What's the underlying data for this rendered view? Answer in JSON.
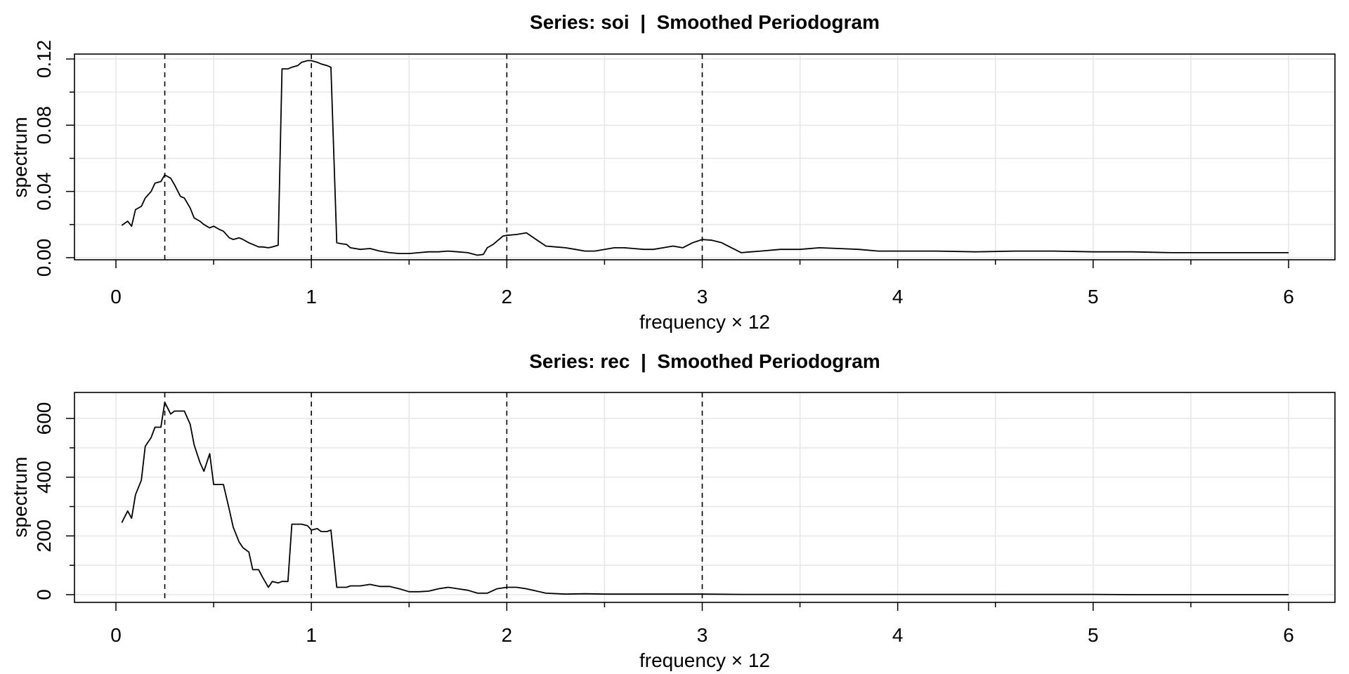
{
  "chart_data": [
    {
      "type": "line",
      "title": "Series: soi  |  Smoothed Periodogram",
      "xlabel": "frequency × 12",
      "ylabel": "spectrum",
      "xlim": [
        0,
        6
      ],
      "ylim": [
        0,
        0.12
      ],
      "xticks": [
        0,
        1,
        2,
        3,
        4,
        5,
        6
      ],
      "xtick_labels": [
        "0",
        "1",
        "2",
        "3",
        "4",
        "5",
        "6"
      ],
      "yticks": [
        0,
        0.04,
        0.08,
        0.12
      ],
      "ytick_labels": [
        "0.00",
        "0.04",
        "0.08",
        "0.12"
      ],
      "grid": true,
      "vlines": [
        0.25,
        1,
        2,
        3
      ],
      "series": [
        {
          "x": [
            0.03,
            0.06,
            0.08,
            0.1,
            0.13,
            0.15,
            0.18,
            0.2,
            0.23,
            0.25,
            0.28,
            0.3,
            0.33,
            0.35,
            0.38,
            0.4,
            0.43,
            0.45,
            0.48,
            0.5,
            0.53,
            0.55,
            0.58,
            0.6,
            0.63,
            0.65,
            0.68,
            0.7,
            0.73,
            0.75,
            0.78,
            0.8,
            0.83,
            0.85,
            0.88,
            0.9,
            0.93,
            0.95,
            0.98,
            1.0,
            1.03,
            1.05,
            1.08,
            1.1,
            1.13,
            1.15,
            1.18,
            1.2,
            1.25,
            1.3,
            1.35,
            1.4,
            1.45,
            1.5,
            1.55,
            1.6,
            1.65,
            1.7,
            1.75,
            1.8,
            1.85,
            1.88,
            1.9,
            1.93,
            1.95,
            1.98,
            2.0,
            2.05,
            2.1,
            2.15,
            2.2,
            2.25,
            2.3,
            2.35,
            2.4,
            2.45,
            2.5,
            2.55,
            2.6,
            2.65,
            2.7,
            2.75,
            2.8,
            2.85,
            2.9,
            2.95,
            3.0,
            3.05,
            3.1,
            3.15,
            3.2,
            3.25,
            3.3,
            3.4,
            3.5,
            3.6,
            3.7,
            3.8,
            3.9,
            4.0,
            4.2,
            4.4,
            4.6,
            4.8,
            5.0,
            5.2,
            5.4,
            5.6,
            5.8,
            6.0
          ],
          "y": [
            0.0195,
            0.022,
            0.019,
            0.029,
            0.031,
            0.036,
            0.04,
            0.045,
            0.046,
            0.05,
            0.048,
            0.044,
            0.037,
            0.036,
            0.03,
            0.024,
            0.022,
            0.02,
            0.018,
            0.019,
            0.017,
            0.016,
            0.012,
            0.011,
            0.012,
            0.011,
            0.009,
            0.008,
            0.0065,
            0.0065,
            0.006,
            0.0065,
            0.0075,
            0.114,
            0.114,
            0.115,
            0.116,
            0.118,
            0.119,
            0.119,
            0.118,
            0.117,
            0.116,
            0.115,
            0.009,
            0.0085,
            0.008,
            0.006,
            0.005,
            0.0055,
            0.004,
            0.003,
            0.0025,
            0.0025,
            0.003,
            0.0035,
            0.0035,
            0.004,
            0.0035,
            0.003,
            0.0015,
            0.002,
            0.006,
            0.008,
            0.01,
            0.013,
            0.0135,
            0.014,
            0.015,
            0.011,
            0.007,
            0.0065,
            0.006,
            0.005,
            0.004,
            0.004,
            0.005,
            0.006,
            0.006,
            0.0055,
            0.005,
            0.005,
            0.006,
            0.007,
            0.006,
            0.009,
            0.011,
            0.0105,
            0.009,
            0.006,
            0.003,
            0.0035,
            0.004,
            0.005,
            0.005,
            0.006,
            0.0055,
            0.005,
            0.004,
            0.004,
            0.004,
            0.0035,
            0.004,
            0.004,
            0.0035,
            0.0035,
            0.003,
            0.003,
            0.003,
            0.003
          ]
        }
      ]
    },
    {
      "type": "line",
      "title": "Series: rec  |  Smoothed Periodogram",
      "xlabel": "frequency × 12",
      "ylabel": "spectrum",
      "xlim": [
        0,
        6
      ],
      "ylim": [
        0,
        650
      ],
      "xticks": [
        0,
        1,
        2,
        3,
        4,
        5,
        6
      ],
      "xtick_labels": [
        "0",
        "1",
        "2",
        "3",
        "4",
        "5",
        "6"
      ],
      "yticks": [
        0,
        200,
        400,
        600
      ],
      "ytick_labels": [
        "0",
        "200",
        "400",
        "600"
      ],
      "grid": true,
      "vlines": [
        0.25,
        1,
        2,
        3
      ],
      "series": [
        {
          "x": [
            0.03,
            0.06,
            0.08,
            0.1,
            0.13,
            0.15,
            0.18,
            0.2,
            0.23,
            0.25,
            0.28,
            0.3,
            0.33,
            0.35,
            0.38,
            0.4,
            0.43,
            0.45,
            0.48,
            0.5,
            0.53,
            0.55,
            0.58,
            0.6,
            0.63,
            0.65,
            0.68,
            0.7,
            0.73,
            0.75,
            0.78,
            0.8,
            0.83,
            0.85,
            0.88,
            0.9,
            0.93,
            0.95,
            0.98,
            1.0,
            1.03,
            1.05,
            1.08,
            1.1,
            1.13,
            1.15,
            1.18,
            1.2,
            1.25,
            1.3,
            1.35,
            1.4,
            1.45,
            1.5,
            1.55,
            1.6,
            1.65,
            1.7,
            1.75,
            1.8,
            1.85,
            1.9,
            1.95,
            2.0,
            2.05,
            2.1,
            2.2,
            2.3,
            2.4,
            2.5,
            2.6,
            2.7,
            2.8,
            2.9,
            3.0,
            3.2,
            3.4,
            3.6,
            3.8,
            4.0,
            4.2,
            4.4,
            4.6,
            4.8,
            5.0,
            5.2,
            5.4,
            5.6,
            5.8,
            6.0
          ],
          "y": [
            245,
            285,
            260,
            340,
            390,
            505,
            535,
            570,
            570,
            655,
            615,
            625,
            625,
            625,
            580,
            510,
            450,
            420,
            480,
            375,
            375,
            375,
            290,
            230,
            180,
            160,
            145,
            85,
            85,
            60,
            25,
            45,
            40,
            45,
            45,
            240,
            240,
            240,
            235,
            220,
            225,
            215,
            215,
            220,
            25,
            25,
            25,
            30,
            30,
            35,
            28,
            28,
            20,
            10,
            10,
            12,
            20,
            25,
            20,
            15,
            5,
            5,
            20,
            25,
            25,
            20,
            5,
            2,
            3,
            2,
            2,
            2,
            2,
            2,
            2,
            1,
            1,
            1,
            1,
            1,
            1,
            1,
            1,
            1,
            1,
            0,
            0,
            0,
            0,
            0
          ]
        }
      ]
    }
  ]
}
